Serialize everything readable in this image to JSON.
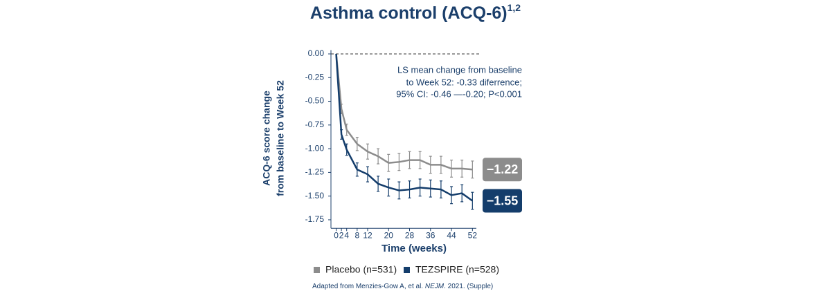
{
  "chart_data": {
    "type": "line",
    "title": "Asthma control (ACQ-6)",
    "title_superscript": "1,2",
    "x_label": "Time (weeks)",
    "y_label": [
      "ACQ-6 score change",
      "from baseline to Week 52"
    ],
    "annotation": [
      "LS mean change from baseline",
      "to Week 52: -0.33 diferrence;",
      "95% CI: -0.46 —-0.20; P<0.001"
    ],
    "x": [
      0,
      2,
      4,
      8,
      12,
      16,
      20,
      24,
      28,
      32,
      36,
      40,
      44,
      48,
      52
    ],
    "xlim": [
      -2,
      53.5
    ],
    "xticks": [
      0,
      2,
      4,
      8,
      12,
      20,
      28,
      36,
      44,
      52
    ],
    "ylim": [
      -1.84,
      0.04
    ],
    "yticks": [
      {
        "value": 0,
        "label": "0.00"
      },
      {
        "value": -0.25,
        "label": "-0.25"
      },
      {
        "value": -0.5,
        "label": "-0.50"
      },
      {
        "value": -0.75,
        "label": "-0.75"
      },
      {
        "value": -1,
        "label": "-1.00"
      },
      {
        "value": -1.25,
        "label": "-1.25"
      },
      {
        "value": -1.5,
        "label": "-1.50"
      },
      {
        "value": -1.75,
        "label": "-1.75"
      }
    ],
    "series": [
      {
        "name": "Placebo (n=531)",
        "color": "#8c8c8c",
        "end_label": "−1.22",
        "values": [
          0,
          -0.58,
          -0.8,
          -0.95,
          -1.03,
          -1.08,
          -1.15,
          -1.14,
          -1.12,
          -1.12,
          -1.17,
          -1.17,
          -1.21,
          -1.21,
          -1.22
        ],
        "errors": [
          0,
          0.05,
          0.06,
          0.07,
          0.08,
          0.08,
          0.09,
          0.09,
          0.09,
          0.09,
          0.09,
          0.09,
          0.09,
          0.09,
          0.09
        ]
      },
      {
        "name": "TEZSPIRE (n=528)",
        "color": "#143d6b",
        "end_label": "−1.55",
        "values": [
          0,
          -0.85,
          -1.01,
          -1.22,
          -1.27,
          -1.37,
          -1.41,
          -1.44,
          -1.43,
          -1.41,
          -1.42,
          -1.43,
          -1.49,
          -1.47,
          -1.55
        ],
        "errors": [
          0,
          0.05,
          0.06,
          0.07,
          0.08,
          0.08,
          0.09,
          0.09,
          0.09,
          0.09,
          0.09,
          0.09,
          0.09,
          0.09,
          0.09
        ]
      }
    ],
    "source": [
      "Adapted from Menzies-Gow A, et al. ",
      "NEJM",
      ". 2021. (Supple)"
    ]
  }
}
